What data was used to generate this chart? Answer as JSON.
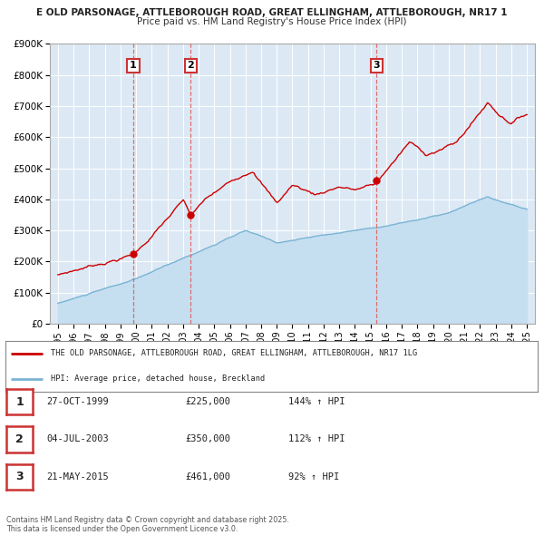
{
  "title_line1": "E OLD PARSONAGE, ATTLEBOROUGH ROAD, GREAT ELLINGHAM, ATTLEBOROUGH, NR17 1",
  "title_line2": "Price paid vs. HM Land Registry's House Price Index (HPI)",
  "background_color": "#ffffff",
  "plot_bg_color": "#dce9f5",
  "grid_color": "#ffffff",
  "sale_dates": [
    1999.82,
    2003.5,
    2015.38
  ],
  "sale_prices": [
    225000,
    350000,
    461000
  ],
  "sale_labels": [
    "1",
    "2",
    "3"
  ],
  "sale_date_strings": [
    "27-OCT-1999",
    "04-JUL-2003",
    "21-MAY-2015"
  ],
  "sale_price_strings": [
    "£225,000",
    "£350,000",
    "£461,000"
  ],
  "sale_hpi_strings": [
    "144% ↑ HPI",
    "112% ↑ HPI",
    "92% ↑ HPI"
  ],
  "red_line_color": "#cc0000",
  "blue_line_color": "#7ab3d4",
  "blue_fill_color": "#c5dff0",
  "vline_color": "#e06060",
  "ylim": [
    0,
    900000
  ],
  "xlim_start": 1994.5,
  "xlim_end": 2025.5,
  "ytick_values": [
    0,
    100000,
    200000,
    300000,
    400000,
    500000,
    600000,
    700000,
    800000,
    900000
  ],
  "ytick_labels": [
    "£0",
    "£100K",
    "£200K",
    "£300K",
    "£400K",
    "£500K",
    "£600K",
    "£700K",
    "£800K",
    "£900K"
  ],
  "xtick_years": [
    1995,
    1996,
    1997,
    1998,
    1999,
    2000,
    2001,
    2002,
    2003,
    2004,
    2005,
    2006,
    2007,
    2008,
    2009,
    2010,
    2011,
    2012,
    2013,
    2014,
    2015,
    2016,
    2017,
    2018,
    2019,
    2020,
    2021,
    2022,
    2023,
    2024,
    2025
  ],
  "legend_line1": "THE OLD PARSONAGE, ATTLEBOROUGH ROAD, GREAT ELLINGHAM, ATTLEBOROUGH, NR17 1LG",
  "legend_line2": "HPI: Average price, detached house, Breckland",
  "footnote": "Contains HM Land Registry data © Crown copyright and database right 2025.\nThis data is licensed under the Open Government Licence v3.0."
}
